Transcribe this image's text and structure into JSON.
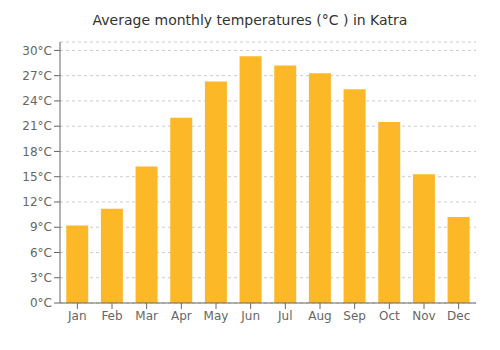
{
  "chart_data": {
    "type": "bar",
    "title": "Average monthly temperatures (°C ) in Katra",
    "categories": [
      "Jan",
      "Feb",
      "Mar",
      "Apr",
      "May",
      "Jun",
      "Jul",
      "Aug",
      "Sep",
      "Oct",
      "Nov",
      "Dec"
    ],
    "values": [
      9.2,
      11.2,
      16.2,
      22.0,
      26.3,
      29.3,
      28.2,
      27.3,
      25.4,
      21.5,
      15.3,
      10.2
    ],
    "color": "#FDB827",
    "ylim": [
      0,
      31
    ],
    "yticks": [
      {
        "value": 0,
        "label": "0°C"
      },
      {
        "value": 3,
        "label": "3°C"
      },
      {
        "value": 6,
        "label": "6°C"
      },
      {
        "value": 9,
        "label": "9°C"
      },
      {
        "value": 12,
        "label": "12°C"
      },
      {
        "value": 15,
        "label": "15°C"
      },
      {
        "value": 18,
        "label": "18°C"
      },
      {
        "value": 21,
        "label": "21°C"
      },
      {
        "value": 24,
        "label": "24°C"
      },
      {
        "value": 27,
        "label": "27°C"
      },
      {
        "value": 30,
        "label": "30°C"
      }
    ],
    "grid": true
  }
}
